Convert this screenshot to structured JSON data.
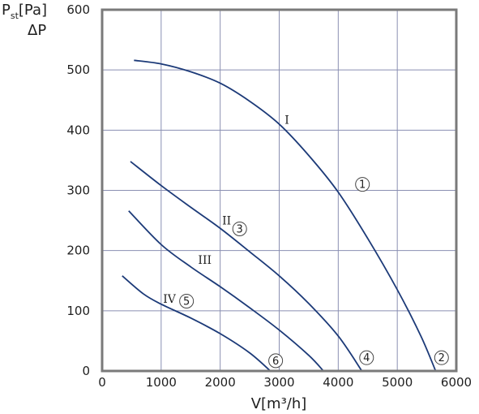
{
  "chart_data": {
    "type": "line",
    "xlabel": "V[m³/h]",
    "ylabel": {
      "main": "P",
      "sub": "st",
      "unit": "[Pa]",
      "line2": "ΔP"
    },
    "xlim": [
      0,
      6000
    ],
    "ylim": [
      0,
      600
    ],
    "xticks": [
      "0",
      "1000",
      "2000",
      "3000",
      "4000",
      "5000",
      "6000"
    ],
    "yticks": [
      "0",
      "100",
      "200",
      "300",
      "400",
      "500",
      "600"
    ],
    "grid": true,
    "colors": {
      "curve": "#1c3a78",
      "grid": "#8a8fb2",
      "frame": "#7a7a7a"
    },
    "series": [
      {
        "name": "I",
        "marker": "1",
        "end_marker": "2",
        "points": [
          [
            540,
            516
          ],
          [
            1000,
            510
          ],
          [
            1500,
            497
          ],
          [
            2000,
            478
          ],
          [
            2500,
            448
          ],
          [
            3000,
            410
          ],
          [
            3500,
            358
          ],
          [
            4000,
            297
          ],
          [
            4500,
            220
          ],
          [
            5000,
            135
          ],
          [
            5400,
            58
          ],
          [
            5650,
            0
          ]
        ]
      },
      {
        "name": "II",
        "marker": "3",
        "end_marker": "4",
        "points": [
          [
            480,
            348
          ],
          [
            1000,
            308
          ],
          [
            1500,
            272
          ],
          [
            2000,
            237
          ],
          [
            2500,
            198
          ],
          [
            3000,
            158
          ],
          [
            3500,
            112
          ],
          [
            4000,
            58
          ],
          [
            4400,
            0
          ]
        ]
      },
      {
        "name": "III",
        "marker": "",
        "end_marker": "",
        "points": [
          [
            450,
            266
          ],
          [
            1000,
            210
          ],
          [
            1500,
            173
          ],
          [
            2000,
            140
          ],
          [
            2500,
            105
          ],
          [
            3000,
            68
          ],
          [
            3500,
            26
          ],
          [
            3750,
            0
          ]
        ]
      },
      {
        "name": "IV",
        "marker": "5",
        "end_marker": "6",
        "points": [
          [
            340,
            158
          ],
          [
            700,
            128
          ],
          [
            1000,
            111
          ],
          [
            1500,
            88
          ],
          [
            2000,
            62
          ],
          [
            2500,
            30
          ],
          [
            2850,
            0
          ]
        ]
      }
    ],
    "labels": [
      {
        "text": "I",
        "x": 3130,
        "y": 417
      },
      {
        "text": "II",
        "x": 2110,
        "y": 250
      },
      {
        "text": "III",
        "x": 1740,
        "y": 185
      },
      {
        "text": "IV",
        "x": 1140,
        "y": 120
      }
    ],
    "circled": [
      {
        "text": "1",
        "x": 4410,
        "y": 310
      },
      {
        "text": "2",
        "x": 5750,
        "y": 22
      },
      {
        "text": "3",
        "x": 2330,
        "y": 236
      },
      {
        "text": "4",
        "x": 4480,
        "y": 22
      },
      {
        "text": "5",
        "x": 1430,
        "y": 116
      },
      {
        "text": "6",
        "x": 2940,
        "y": 17
      }
    ]
  }
}
